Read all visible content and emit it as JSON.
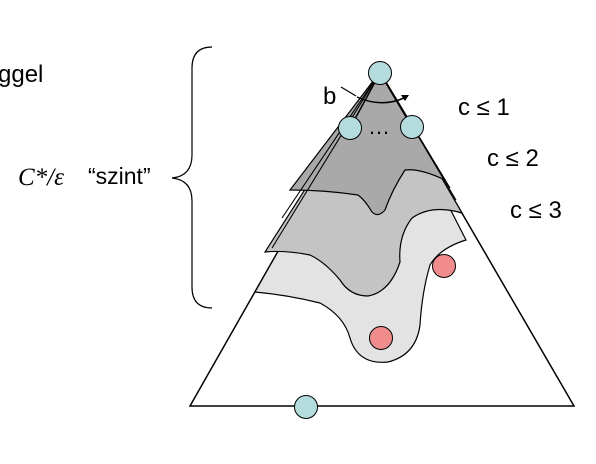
{
  "left_text": {
    "fragment": "ggel",
    "symbol": "C*/ε",
    "word": "“szint”"
  },
  "tree": {
    "branch_label": "b",
    "dots": "…"
  },
  "contour_labels": [
    "c ≤ 1",
    "c ≤ 2",
    "c ≤ 3"
  ],
  "colors": {
    "node_fill": "#b4dcdc",
    "goal_fill": "#f08c8c",
    "level1": "#a9a9a9",
    "level2": "#c4c4c4",
    "level3": "#e3e3e3",
    "stroke": "#000000"
  }
}
